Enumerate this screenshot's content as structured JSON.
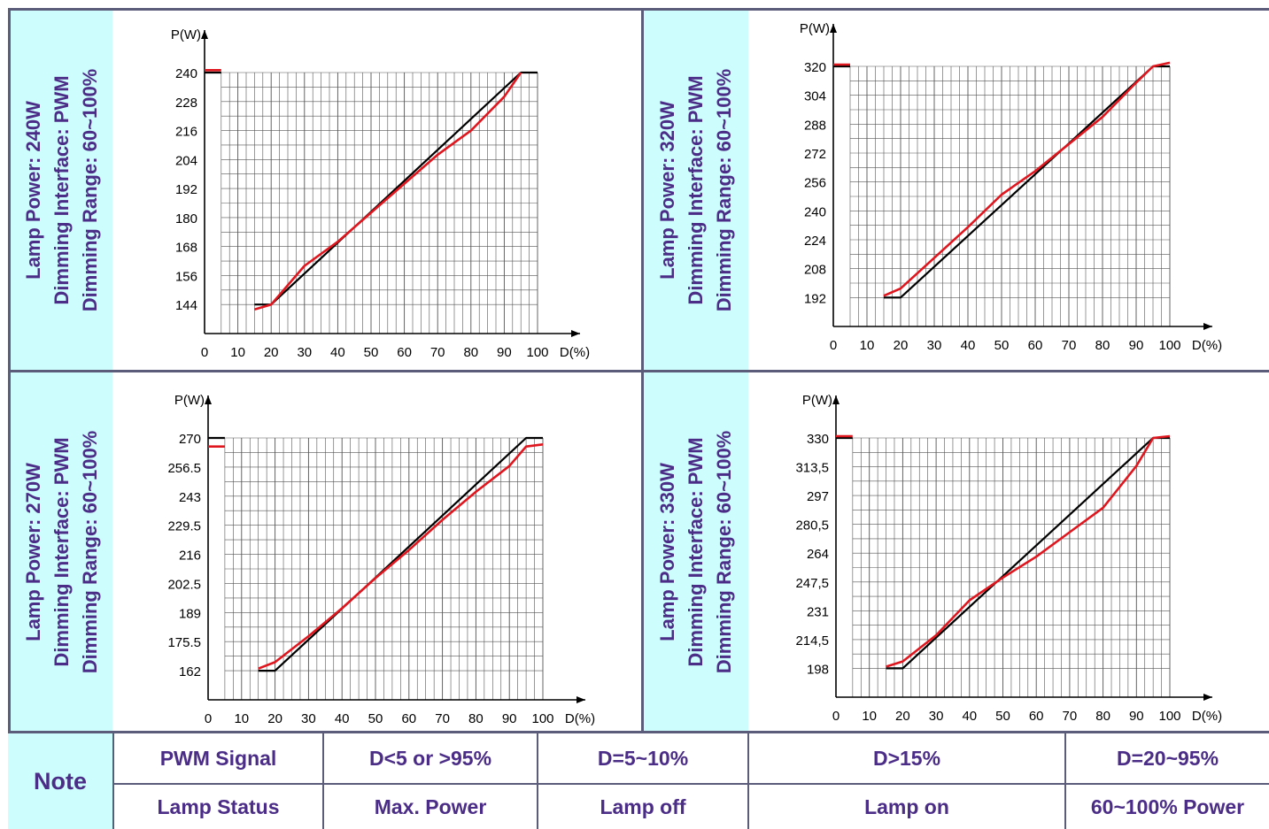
{
  "panels": [
    {
      "lines": [
        "Lamp Power: 240W",
        "Dimming Interface: PWM",
        "Dimming Range: 60~100%"
      ]
    },
    {
      "lines": [
        "Lamp Power: 320W",
        "Dimming Interface: PWM",
        "Dimming Range: 60~100%"
      ]
    },
    {
      "lines": [
        "Lamp Power: 270W",
        "Dimming Interface: PWM",
        "Dimming Range: 60~100%"
      ]
    },
    {
      "lines": [
        "Lamp Power: 330W",
        "Dimming Interface: PWM",
        "Dimming Range: 60~100%"
      ]
    }
  ],
  "note": {
    "label": "Note",
    "headers": [
      "PWM Signal",
      "D<5 or >95%",
      "D=5~10%",
      "D>15%",
      "D=20~95%"
    ],
    "values": [
      "Lamp Status",
      "Max. Power",
      "Lamp off",
      "Lamp on",
      "60~100% Power"
    ]
  },
  "chart_data": [
    {
      "type": "line",
      "ylabel": "P(W)",
      "xlabel": "D(%)",
      "x_ticks": [
        "0",
        "10",
        "20",
        "30",
        "40",
        "50",
        "60",
        "70",
        "80",
        "90",
        "100"
      ],
      "y_ticks": [
        "144",
        "156",
        "168",
        "180",
        "192",
        "204",
        "216",
        "228",
        "240"
      ],
      "y_tick_values": [
        144,
        156,
        168,
        180,
        192,
        204,
        216,
        228,
        240
      ],
      "ylim": [
        132,
        240
      ],
      "series": [
        {
          "color": "#000000",
          "x": [
            0,
            5
          ],
          "y": [
            240,
            240
          ]
        },
        {
          "color": "#000000",
          "x": [
            15,
            20,
            95,
            100
          ],
          "y": [
            144,
            144,
            240,
            240
          ]
        },
        {
          "color": "#e0161f",
          "x": [
            0,
            5
          ],
          "y": [
            241,
            241
          ]
        },
        {
          "color": "#e0161f",
          "x": [
            15,
            20,
            30,
            40,
            50,
            60,
            70,
            80,
            90,
            95
          ],
          "y": [
            142,
            144,
            160,
            170,
            182,
            194,
            206,
            216,
            230,
            240
          ]
        }
      ]
    },
    {
      "type": "line",
      "ylabel": "P(W)",
      "xlabel": "D(%)",
      "x_ticks": [
        "0",
        "10",
        "20",
        "30",
        "40",
        "50",
        "60",
        "70",
        "80",
        "90",
        "100"
      ],
      "y_ticks": [
        "192",
        "208",
        "224",
        "240",
        "256",
        "272",
        "288",
        "304",
        "320"
      ],
      "y_tick_values": [
        192,
        208,
        224,
        240,
        256,
        272,
        288,
        304,
        320
      ],
      "ylim": [
        176,
        320
      ],
      "series": [
        {
          "color": "#000000",
          "x": [
            0,
            5
          ],
          "y": [
            320,
            320
          ]
        },
        {
          "color": "#000000",
          "x": [
            15,
            20,
            95,
            100
          ],
          "y": [
            192,
            192,
            320,
            320
          ]
        },
        {
          "color": "#e0161f",
          "x": [
            0,
            5
          ],
          "y": [
            321,
            321
          ]
        },
        {
          "color": "#e0161f",
          "x": [
            15,
            20,
            30,
            40,
            50,
            60,
            70,
            80,
            90,
            95,
            100
          ],
          "y": [
            193,
            197,
            214,
            231,
            249,
            262,
            277,
            292,
            311,
            320,
            322
          ]
        }
      ]
    },
    {
      "type": "line",
      "ylabel": "P(W)",
      "xlabel": "D(%)",
      "x_ticks": [
        "0",
        "10",
        "20",
        "30",
        "40",
        "50",
        "60",
        "70",
        "80",
        "90",
        "100"
      ],
      "y_ticks": [
        "162",
        "175.5",
        "189",
        "202.5",
        "216",
        "229.5",
        "243",
        "256.5",
        "270"
      ],
      "y_tick_values": [
        162,
        175.5,
        189,
        202.5,
        216,
        229.5,
        243,
        256.5,
        270
      ],
      "ylim": [
        148.5,
        270
      ],
      "series": [
        {
          "color": "#000000",
          "x": [
            0,
            5
          ],
          "y": [
            270,
            270
          ]
        },
        {
          "color": "#000000",
          "x": [
            15,
            20,
            95,
            100
          ],
          "y": [
            162,
            162,
            270,
            270
          ]
        },
        {
          "color": "#e0161f",
          "x": [
            0,
            5
          ],
          "y": [
            266,
            266
          ]
        },
        {
          "color": "#e0161f",
          "x": [
            15,
            20,
            30,
            40,
            50,
            60,
            70,
            80,
            90,
            95,
            100
          ],
          "y": [
            163,
            166,
            178,
            191,
            205,
            218,
            232,
            245,
            257,
            266,
            267
          ]
        }
      ]
    },
    {
      "type": "line",
      "ylabel": "P(W)",
      "xlabel": "D(%)",
      "x_ticks": [
        "0",
        "10",
        "20",
        "30",
        "40",
        "50",
        "60",
        "70",
        "80",
        "90",
        "100"
      ],
      "y_ticks": [
        "198",
        "214,5",
        "231",
        "247,5",
        "264",
        "280,5",
        "297",
        "313,5",
        "330"
      ],
      "y_tick_values": [
        198,
        214.5,
        231,
        247.5,
        264,
        280.5,
        297,
        313.5,
        330
      ],
      "ylim": [
        181.5,
        330
      ],
      "series": [
        {
          "color": "#000000",
          "x": [
            0,
            5
          ],
          "y": [
            330,
            330
          ]
        },
        {
          "color": "#000000",
          "x": [
            15,
            20,
            95,
            100
          ],
          "y": [
            198,
            198,
            330,
            330
          ]
        },
        {
          "color": "#e0161f",
          "x": [
            0,
            5
          ],
          "y": [
            331,
            331
          ]
        },
        {
          "color": "#e0161f",
          "x": [
            15,
            20,
            30,
            40,
            50,
            60,
            70,
            80,
            90,
            95,
            100
          ],
          "y": [
            199,
            202,
            217,
            237,
            250,
            262,
            276,
            290,
            314,
            330,
            331
          ]
        }
      ]
    }
  ]
}
